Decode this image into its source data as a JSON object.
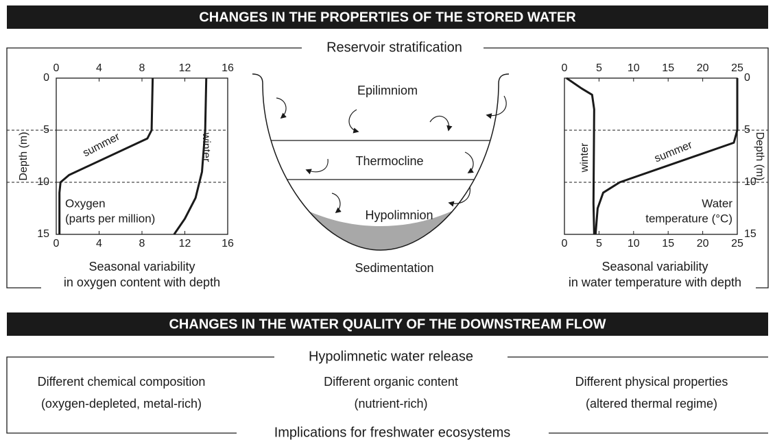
{
  "banners": [
    "CHANGES IN THE PROPERTIES OF THE STORED WATER",
    "CHANGES IN THE WATER QUALITY OF THE DOWNSTREAM FLOW"
  ],
  "stratification": {
    "title": "Reservoir stratification",
    "layers": [
      "Epilimniom",
      "Thermocline",
      "Hypolimnion"
    ],
    "bottom_label": "Sedimentation"
  },
  "chart_data": [
    {
      "type": "line",
      "ylabel": "Depth (m)",
      "annotation": [
        "Oxygen",
        "(parts per million)"
      ],
      "caption": [
        "Seasonal variability",
        "in oxygen content with depth"
      ],
      "xlim": [
        0,
        16
      ],
      "xticks": [
        0,
        4,
        8,
        12,
        16
      ],
      "ylim": [
        15,
        0
      ],
      "yticks": [
        0,
        5,
        10,
        15
      ],
      "yaxis_side": "left",
      "reference_lines": [
        5,
        10
      ],
      "series": [
        {
          "name": "summer",
          "color": "#1a1a1a",
          "x": [
            9,
            8.9,
            8.5,
            1.2,
            0.4,
            0.3,
            0.3
          ],
          "values": [
            0,
            5,
            5.8,
            9.3,
            10,
            11,
            15
          ]
        },
        {
          "name": "winter",
          "color": "#1a1a1a",
          "x": [
            14,
            13.9,
            13.6,
            13,
            12,
            11
          ],
          "values": [
            0,
            5,
            9,
            11.5,
            13.5,
            15
          ]
        }
      ]
    },
    {
      "type": "line",
      "ylabel": "Depth (m)",
      "annotation": [
        "Water",
        "temperature (°C)"
      ],
      "caption": [
        "Seasonal variability",
        "in water temperature with depth"
      ],
      "xlim": [
        0,
        25
      ],
      "xticks": [
        0,
        5,
        10,
        15,
        20,
        25
      ],
      "ylim": [
        15,
        0
      ],
      "yticks": [
        0,
        5,
        10,
        15
      ],
      "yaxis_side": "right",
      "reference_lines": [
        5,
        10
      ],
      "series": [
        {
          "name": "winter",
          "color": "#1a1a1a",
          "x": [
            0.3,
            2.5,
            4,
            4.3,
            4.2,
            4.3
          ],
          "values": [
            0,
            1,
            1.6,
            3,
            12,
            15
          ]
        },
        {
          "name": "summer",
          "color": "#1a1a1a",
          "x": [
            25,
            25,
            24.5,
            8,
            5.6,
            4.8,
            4.5
          ],
          "values": [
            0,
            5,
            6.2,
            10,
            11,
            12.5,
            15
          ]
        }
      ]
    }
  ],
  "downstream": {
    "title": "Hypolimnetic water release",
    "columns": [
      [
        "Different chemical composition",
        "(oxygen-depleted, metal-rich)"
      ],
      [
        "Different organic content",
        "(nutrient-rich)"
      ],
      [
        "Different physical properties",
        "(altered thermal regime)"
      ]
    ],
    "footer": "Implications for freshwater ecosystems"
  }
}
